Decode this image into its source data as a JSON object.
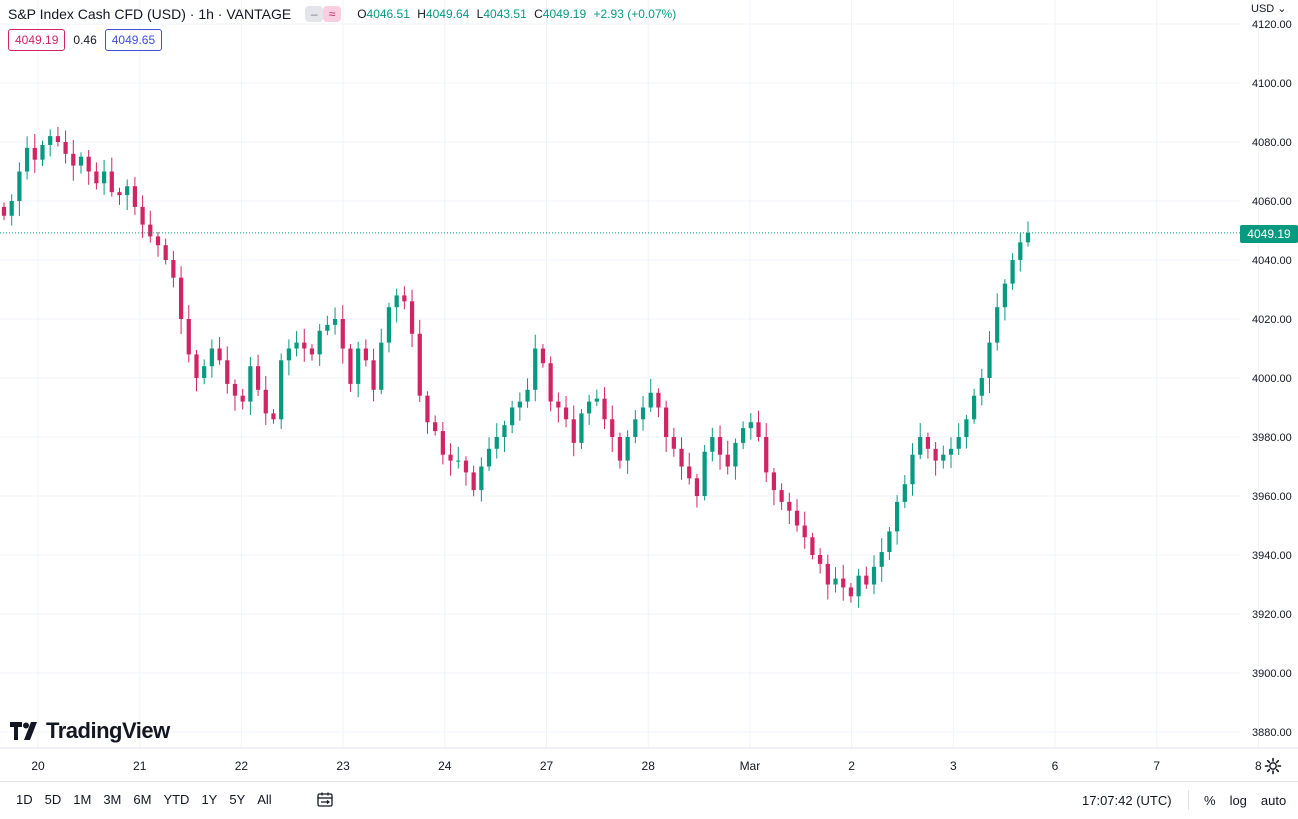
{
  "header": {
    "title": "S&P Index Cash CFD (USD) · 1h · VANTAGE",
    "ohlc": {
      "o_label": "O",
      "o_value": "4046.51",
      "h_label": "H",
      "h_value": "4049.64",
      "l_label": "L",
      "l_value": "4043.51",
      "c_label": "C",
      "c_value": "4049.19",
      "change": "+2.93 (+0.07%)"
    },
    "bid": "4049.19",
    "spread": "0.46",
    "ask": "4049.65",
    "currency": "USD"
  },
  "colors": {
    "up": "#089981",
    "down": "#d02464",
    "grid": "#f0f3fa",
    "last_price": "#089981"
  },
  "last_price_label": "4049.19",
  "logo_text": "TradingView",
  "bottom_bar": {
    "ranges": [
      "1D",
      "5D",
      "1M",
      "3M",
      "6M",
      "YTD",
      "1Y",
      "5Y",
      "All"
    ],
    "clock": "17:07:42 (UTC)",
    "percent": "%",
    "log": "log",
    "auto": "auto"
  },
  "icons": {
    "calendar": "calendar-range-icon",
    "settings": "gear-icon",
    "chevron": "chevron-down-icon"
  },
  "chart_data": {
    "type": "candlestick",
    "ylim": [
      3874,
      4124
    ],
    "last_price": 4049.19,
    "y_ticks": [
      "3880.00",
      "3900.00",
      "3920.00",
      "3940.00",
      "3960.00",
      "3980.00",
      "4000.00",
      "4020.00",
      "4040.00",
      "4060.00",
      "4080.00",
      "4100.00",
      "4120.00"
    ],
    "x_ticks": [
      "20",
      "21",
      "22",
      "23",
      "24",
      "27",
      "28",
      "Mar",
      "2",
      "3",
      "6",
      "7",
      "8"
    ],
    "series_close": [
      4055,
      4060,
      4070,
      4078,
      4074,
      4079,
      4082,
      4080,
      4076,
      4072,
      4075,
      4070,
      4066,
      4070,
      4063,
      4062,
      4065,
      4058,
      4052,
      4048,
      4045,
      4040,
      4034,
      4020,
      4008,
      4000,
      4004,
      4010,
      4006,
      3998,
      3994,
      3992,
      4004,
      3996,
      3988,
      3986,
      4006,
      4010,
      4012,
      4010,
      4008,
      4016,
      4018,
      4020,
      4010,
      3998,
      4010,
      4006,
      3996,
      4012,
      4024,
      4028,
      4026,
      4015,
      3994,
      3985,
      3982,
      3974,
      3972,
      3972,
      3968,
      3962,
      3970,
      3976,
      3980,
      3984,
      3990,
      3992,
      3996,
      4010,
      4005,
      3992,
      3990,
      3986,
      3978,
      3988,
      3992,
      3993,
      3986,
      3980,
      3972,
      3980,
      3986,
      3990,
      3995,
      3990,
      3980,
      3976,
      3970,
      3966,
      3960,
      3975,
      3980,
      3974,
      3970,
      3978,
      3983,
      3985,
      3980,
      3968,
      3962,
      3958,
      3955,
      3950,
      3946,
      3940,
      3937,
      3930,
      3932,
      3929,
      3926,
      3933,
      3930,
      3936,
      3941,
      3948,
      3958,
      3964,
      3974,
      3980,
      3976,
      3972,
      3974,
      3976,
      3980,
      3986,
      3994,
      4000,
      4012,
      4024,
      4032,
      4040,
      4046,
      4049.19
    ]
  }
}
